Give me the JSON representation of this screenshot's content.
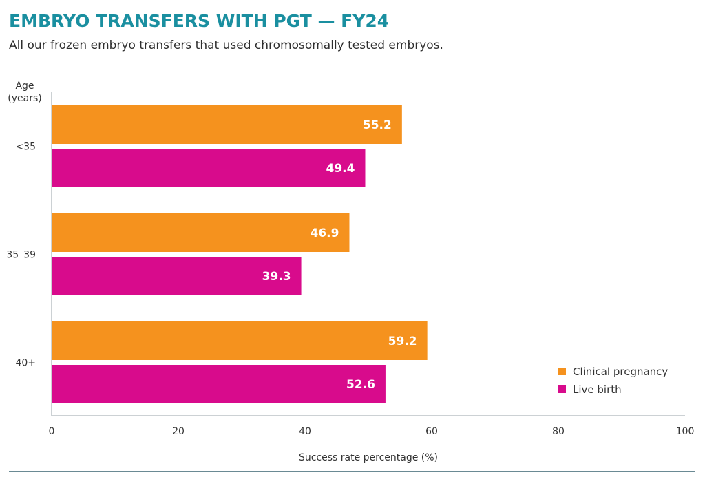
{
  "header": {
    "title": "EMBRYO TRANSFERS WITH PGT — FY24",
    "subtitle": "All our frozen embryo transfers that used chromosomally tested embryos."
  },
  "chart_data": {
    "type": "bar",
    "orientation": "horizontal",
    "title": "EMBRYO TRANSFERS WITH PGT — FY24",
    "subtitle": "All our frozen embryo transfers that used chromosomally tested embryos.",
    "ylabel_lines": [
      "Age",
      "(years)"
    ],
    "xlabel": "Success rate percentage (%)",
    "categories": [
      "<35",
      "35–39",
      "40+"
    ],
    "xlim": [
      0,
      100
    ],
    "xticks": [
      0,
      20,
      40,
      60,
      80,
      100
    ],
    "series": [
      {
        "name": "Clinical pregnancy",
        "color": "#f5921e",
        "values": [
          55.2,
          46.9,
          59.2
        ]
      },
      {
        "name": "Live birth",
        "color": "#d80b8c",
        "values": [
          49.4,
          39.3,
          52.6
        ]
      }
    ],
    "legend_position": "bottom-right",
    "grid": false
  }
}
